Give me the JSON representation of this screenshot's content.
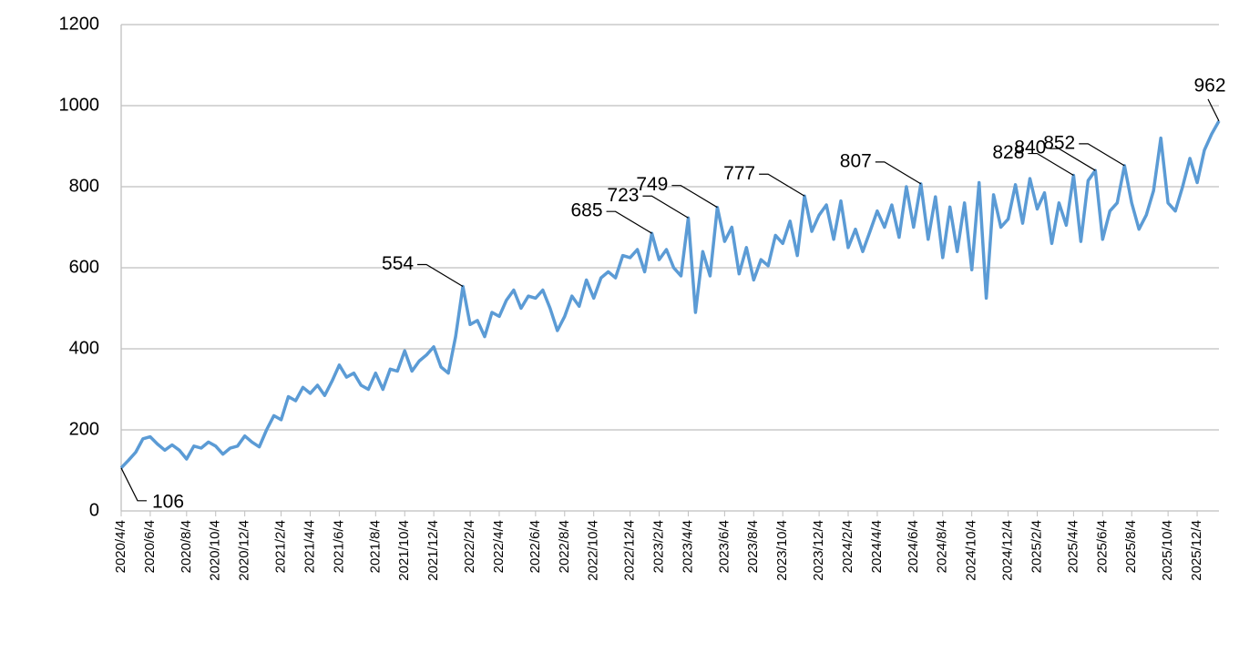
{
  "chart_data": {
    "type": "line",
    "categories": [
      "2020/4/4",
      null,
      null,
      null,
      "2020/6/4",
      null,
      null,
      null,
      null,
      "2020/8/4",
      null,
      null,
      null,
      "2020/10/4",
      null,
      null,
      null,
      "2020/12/4",
      null,
      null,
      null,
      null,
      "2021/2/4",
      null,
      null,
      null,
      "2021/4/4",
      null,
      null,
      null,
      "2021/6/4",
      null,
      null,
      null,
      null,
      "2021/8/4",
      null,
      null,
      null,
      "2021/10/4",
      null,
      null,
      null,
      "2021/12/4",
      null,
      null,
      null,
      null,
      "2022/2/4",
      null,
      null,
      null,
      "2022/4/4",
      null,
      null,
      null,
      null,
      "2022/6/4",
      null,
      null,
      null,
      "2022/8/4",
      null,
      null,
      null,
      "2022/10/4",
      null,
      null,
      null,
      null,
      "2022/12/4",
      null,
      null,
      null,
      "2023/2/4",
      null,
      null,
      null,
      "2023/4/4",
      null,
      null,
      null,
      null,
      "2023/6/4",
      null,
      null,
      null,
      "2023/8/4",
      null,
      null,
      null,
      "2023/10/4",
      null,
      null,
      null,
      null,
      "2023/12/4",
      null,
      null,
      null,
      "2024/2/4",
      null,
      null,
      null,
      "2024/4/4",
      null,
      null,
      null,
      null,
      "2024/6/4",
      null,
      null,
      null,
      "2024/8/4",
      null,
      null,
      null,
      "2024/10/4",
      null,
      null,
      null,
      null,
      "2024/12/4",
      null,
      null,
      null,
      "2025/2/4",
      null,
      null,
      null,
      null,
      "2025/4/4",
      null,
      null,
      null,
      "2025/6/4",
      null,
      null,
      null,
      "2025/8/4",
      null,
      null,
      null,
      null,
      "2025/10/4",
      null,
      null,
      null,
      "2025/12/4",
      null,
      null,
      null
    ],
    "series": [
      {
        "name": null,
        "color": "#5b9bd5",
        "values": [
          106,
          125,
          145,
          178,
          183,
          165,
          150,
          163,
          150,
          128,
          160,
          155,
          170,
          160,
          140,
          155,
          160,
          185,
          170,
          158,
          200,
          235,
          225,
          282,
          272,
          305,
          290,
          310,
          285,
          320,
          360,
          330,
          340,
          310,
          300,
          340,
          300,
          350,
          345,
          395,
          345,
          370,
          385,
          405,
          355,
          340,
          430,
          554,
          460,
          470,
          430,
          490,
          480,
          520,
          545,
          500,
          530,
          525,
          545,
          500,
          445,
          480,
          530,
          505,
          570,
          525,
          575,
          590,
          575,
          630,
          625,
          645,
          590,
          685,
          620,
          645,
          600,
          580,
          723,
          490,
          640,
          580,
          749,
          665,
          700,
          585,
          650,
          570,
          620,
          605,
          680,
          660,
          715,
          630,
          777,
          690,
          730,
          755,
          670,
          765,
          650,
          695,
          640,
          690,
          740,
          700,
          755,
          675,
          800,
          700,
          807,
          670,
          775,
          625,
          750,
          640,
          760,
          595,
          810,
          525,
          780,
          700,
          720,
          805,
          710,
          820,
          745,
          785,
          660,
          760,
          705,
          828,
          665,
          815,
          840,
          670,
          740,
          760,
          852,
          760,
          695,
          730,
          790,
          920,
          760,
          740,
          800,
          870,
          810,
          890,
          930,
          962
        ],
        "value_labels": [
          "106",
          null,
          null,
          null,
          null,
          null,
          null,
          null,
          null,
          null,
          null,
          null,
          null,
          null,
          null,
          null,
          null,
          null,
          null,
          null,
          null,
          null,
          null,
          null,
          null,
          null,
          null,
          null,
          null,
          null,
          null,
          null,
          null,
          null,
          null,
          null,
          null,
          null,
          null,
          null,
          null,
          null,
          null,
          null,
          null,
          null,
          null,
          "554",
          null,
          null,
          null,
          null,
          null,
          null,
          null,
          null,
          null,
          null,
          null,
          null,
          null,
          null,
          null,
          null,
          null,
          null,
          null,
          null,
          null,
          null,
          null,
          null,
          null,
          "685",
          null,
          null,
          null,
          null,
          "723",
          null,
          null,
          null,
          "749",
          null,
          null,
          null,
          null,
          null,
          null,
          null,
          null,
          null,
          null,
          null,
          "777",
          null,
          null,
          null,
          null,
          null,
          null,
          null,
          null,
          null,
          null,
          null,
          null,
          null,
          null,
          null,
          "807",
          null,
          null,
          null,
          null,
          null,
          null,
          null,
          null,
          null,
          null,
          null,
          null,
          null,
          null,
          null,
          null,
          null,
          null,
          null,
          null,
          "828",
          null,
          null,
          "840",
          null,
          null,
          null,
          "852",
          null,
          null,
          null,
          null,
          null,
          null,
          null,
          null,
          null,
          null,
          null,
          null,
          "962"
        ]
      }
    ],
    "ylim": [
      0,
      1200
    ],
    "yticks": [
      0,
      200,
      400,
      600,
      800,
      1000,
      1200
    ],
    "grid": true
  }
}
